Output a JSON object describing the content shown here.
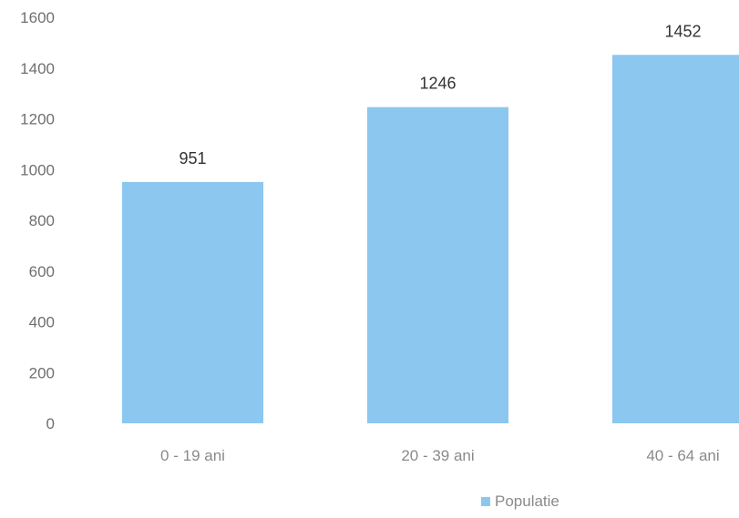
{
  "chart_data": {
    "type": "bar",
    "categories": [
      "0 - 19 ani",
      "20 - 39 ani",
      "40 - 64 ani"
    ],
    "series": [
      {
        "name": "Populatie",
        "values": [
          951,
          1246,
          1452
        ],
        "color": "#8cc7f0"
      }
    ],
    "data_labels": [
      "951",
      "1246",
      "1452"
    ],
    "yticks": [
      "0",
      "200",
      "400",
      "600",
      "800",
      "1000",
      "1200",
      "1400",
      "1600"
    ],
    "ylim": [
      0,
      1600
    ],
    "grid": false,
    "legend": {
      "position": "bottom",
      "entries": [
        "Populatie"
      ]
    }
  }
}
